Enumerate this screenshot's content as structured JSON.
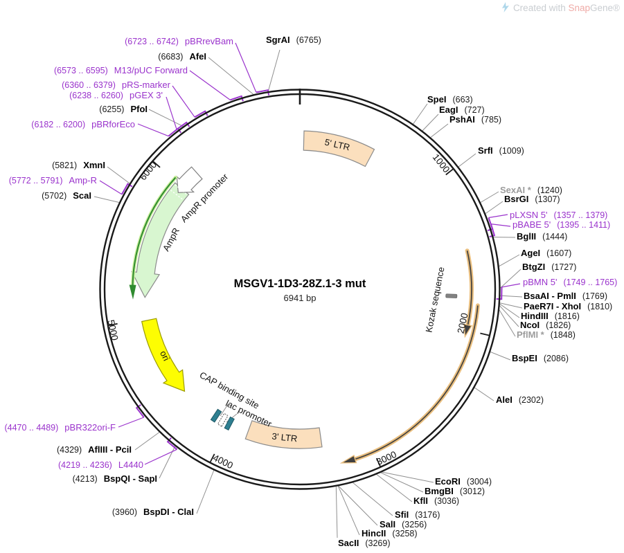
{
  "title": {
    "name": "MSGV1-1D3-28Z.1-3 mut",
    "size": "6941 bp"
  },
  "watermark": {
    "prefix": "Created with ",
    "brand": "Snap",
    "suffix": "Gene®",
    "icon": "snapgene-logo-icon"
  },
  "ticks": [
    "1000",
    "2000",
    "3000",
    "4000",
    "5000",
    "6000"
  ],
  "enzymes": {
    "sgrai": {
      "name": "SgrAI",
      "pos": "(6765)"
    },
    "afei": {
      "name": "AfeI",
      "pos": "(6683)"
    },
    "pfoi": {
      "name": "PfoI",
      "pos": "(6255)"
    },
    "spei": {
      "name": "SpeI",
      "pos": "(663)"
    },
    "eagi": {
      "name": "EagI",
      "pos": "(727)"
    },
    "pshai": {
      "name": "PshAI",
      "pos": "(785)"
    },
    "srfi": {
      "name": "SrfI",
      "pos": "(1009)"
    },
    "sexai": {
      "name": "SexAI *",
      "pos": "(1240)"
    },
    "bsrgi": {
      "name": "BsrGI",
      "pos": "(1307)"
    },
    "bglii": {
      "name": "BglII",
      "pos": "(1444)"
    },
    "agei": {
      "name": "AgeI",
      "pos": "(1607)"
    },
    "btgzi": {
      "name": "BtgZI",
      "pos": "(1727)"
    },
    "bsaai": {
      "name": "BsaAI - PmlI",
      "pos": "(1769)"
    },
    "paer7i": {
      "name": "PaeR7I - XhoI",
      "pos": "(1810)"
    },
    "hindiii": {
      "name": "HindIII",
      "pos": "(1816)"
    },
    "ncoi": {
      "name": "NcoI",
      "pos": "(1826)"
    },
    "pflmi": {
      "name": "PflMI *",
      "pos": "(1848)"
    },
    "bspei": {
      "name": "BspEI",
      "pos": "(2086)"
    },
    "alei": {
      "name": "AleI",
      "pos": "(2302)"
    },
    "ecori": {
      "name": "EcoRI",
      "pos": "(3004)"
    },
    "bmgbi": {
      "name": "BmgBI",
      "pos": "(3012)"
    },
    "kfli": {
      "name": "KflI",
      "pos": "(3036)"
    },
    "sfii": {
      "name": "SfiI",
      "pos": "(3176)"
    },
    "sali": {
      "name": "SalI",
      "pos": "(3256)"
    },
    "hincii": {
      "name": "HincII",
      "pos": "(3258)"
    },
    "sacii": {
      "name": "SacII",
      "pos": "(3269)"
    },
    "bspdi": {
      "name": "BspDI - ClaI",
      "pos": "(3960)"
    },
    "bspqi": {
      "name": "BspQI - SapI",
      "pos": "(4213)"
    },
    "afliii": {
      "name": "AflIII - PciI",
      "pos": "(4329)"
    },
    "scai": {
      "name": "ScaI",
      "pos": "(5702)"
    },
    "xmni": {
      "name": "XmnI",
      "pos": "(5821)"
    }
  },
  "primers": {
    "pbrrevbam": {
      "name": "pBRrevBam",
      "range": "(6723 .. 6742)"
    },
    "m13puc": {
      "name": "M13/pUC Forward",
      "range": "(6573 .. 6595)"
    },
    "prsmarker": {
      "name": "pRS-marker",
      "range": "(6360 .. 6379)"
    },
    "pgex3": {
      "name": "pGEX 3'",
      "range": "(6238 .. 6260)"
    },
    "pbrforeco": {
      "name": "pBRforEco",
      "range": "(6182 .. 6200)"
    },
    "amprprimer": {
      "name": "Amp-R",
      "range": "(5772 .. 5791)"
    },
    "pbr322orif": {
      "name": "pBR322ori-F",
      "range": "(4470 .. 4489)"
    },
    "l4440": {
      "name": "L4440",
      "range": "(4219 .. 4236)"
    },
    "plxsn5": {
      "name": "pLXSN 5'",
      "range": "(1357 .. 1379)"
    },
    "pbabe5": {
      "name": "pBABE 5'",
      "range": "(1395 .. 1411)"
    },
    "pbmn5": {
      "name": "pBMN 5'",
      "range": "(1749 .. 1765)"
    }
  },
  "features": {
    "ltr5": "5' LTR",
    "ltr3": "3' LTR",
    "ampr": "AmpR",
    "ampr_promoter": "AmpR promoter",
    "ori": "ori",
    "cap": "CAP binding site",
    "lac": "lac promoter",
    "kozak": "Kozak sequence"
  },
  "colors": {
    "primer": "#9A33CC",
    "leader": "#8f8f8f",
    "backbone": "#1a1a1a",
    "ltr_fill": "#FBDFBD",
    "ltr_stroke": "#8b8b8b",
    "ampr_fill": "#D8F6D0",
    "ampr_stroke": "#8b8b8b",
    "green_line": "#2F8B2F",
    "green_glow": "#C8EE9B",
    "ori_fill": "#FDFD02",
    "ori_stroke": "#9b9b00",
    "cds_band": "#E9BE7E",
    "cds_core": "#404040",
    "kozak_gray": "#828282",
    "teal": "#2E7F91"
  }
}
